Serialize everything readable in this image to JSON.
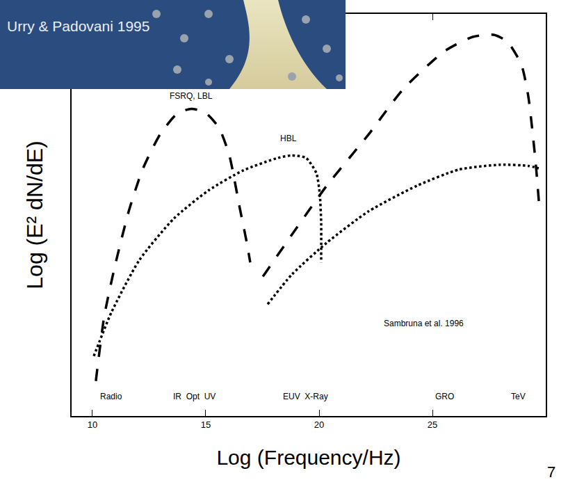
{
  "chart_data": {
    "type": "line",
    "inset_caption": "Urry & Padovani 1995",
    "page_number": "7",
    "x_label": "Log (Frequency/Hz)",
    "y_label": "Log (E² dN/dE)",
    "xlim": [
      9.08,
      30
    ],
    "xticks": [
      10,
      15,
      20,
      25
    ],
    "ylim": [
      0,
      10
    ],
    "tick_labels": "x",
    "grid": false,
    "series": [
      {
        "name": "FSRQ, LBL",
        "color": "#000000",
        "line_style": "dashed",
        "label_at": [
          14.36,
          7.95
        ],
        "x": [
          10.15,
          10.52,
          10.98,
          11.6,
          12.21,
          12.98,
          13.74,
          14.36,
          14.97,
          15.58,
          16.04,
          16.5,
          16.81,
          16.96,
          null,
          17.52,
          18.8,
          20.34,
          22.18,
          23.71,
          25.55,
          26.78,
          27.7,
          28.31,
          28.93,
          29.23,
          29.54,
          29.72
        ],
        "values": [
          0.87,
          2.48,
          3.7,
          5.09,
          6.13,
          7.0,
          7.52,
          7.64,
          7.55,
          7.17,
          6.48,
          5.17,
          4.31,
          3.82,
          null,
          3.47,
          4.51,
          5.73,
          7.0,
          8.13,
          9.08,
          9.43,
          9.48,
          9.31,
          8.73,
          7.95,
          6.39,
          5.17
        ]
      },
      {
        "name": "HBL",
        "color": "#000000",
        "line_style": "dotted",
        "label_at": [
          18.65,
          6.9
        ],
        "x": [
          10.06,
          10.83,
          12.06,
          13.59,
          15.12,
          16.66,
          18.19,
          18.8,
          19.42,
          19.88,
          20.03,
          20.09,
          20.09,
          null,
          17.73,
          18.8,
          20.34,
          22.18,
          24.33,
          26.17,
          28.01,
          29.23,
          29.69
        ],
        "values": [
          1.49,
          2.57,
          3.87,
          4.91,
          5.61,
          6.11,
          6.42,
          6.48,
          6.42,
          6.04,
          5.52,
          4.83,
          3.82,
          null,
          2.78,
          3.52,
          4.31,
          5.09,
          5.73,
          6.13,
          6.25,
          6.22,
          6.16
        ]
      }
    ],
    "annotations": [
      {
        "text": "Sambruna et al. 1996",
        "x": 24.63,
        "y": 2.3
      },
      {
        "text": "Radio",
        "x": 10.83,
        "y": 0.49
      },
      {
        "text": "IR  Opt  UV",
        "x": 14.5,
        "y": 0.49
      },
      {
        "text": "EUV  X-Ray",
        "x": 19.4,
        "y": 0.49
      },
      {
        "text": "GRO",
        "x": 25.55,
        "y": 0.49
      },
      {
        "text": "TeV",
        "x": 28.8,
        "y": 0.49
      }
    ]
  }
}
